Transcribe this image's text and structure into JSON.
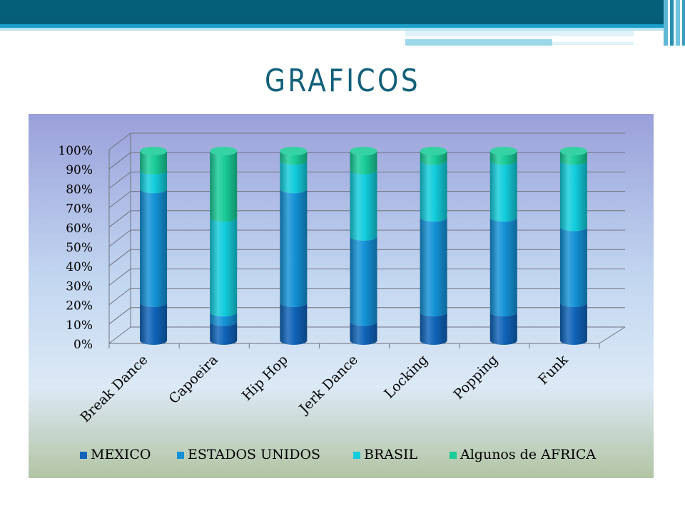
{
  "slide": {
    "title": "GRAFICOS"
  },
  "colors": {
    "MEXICO": "#0f63b8",
    "ESTADOS UNIDOS": "#1491d6",
    "BRASIL": "#13ccdc",
    "Algunos de AFRICA": "#19cc98"
  },
  "chart_data": {
    "type": "bar",
    "stacked": "percent",
    "three_d": true,
    "title": "",
    "xlabel": "",
    "ylabel": "",
    "categories": [
      "Break Dance",
      "Capoeira",
      "Hip Hop",
      "Jerk Dance",
      "Locking",
      "Popping",
      "Funk"
    ],
    "series": [
      {
        "name": "MEXICO",
        "values": [
          20,
          10,
          20,
          10,
          15,
          15,
          20
        ]
      },
      {
        "name": "ESTADOS UNIDOS",
        "values": [
          60,
          5,
          60,
          45,
          50,
          50,
          40
        ]
      },
      {
        "name": "BRASIL",
        "values": [
          10,
          50,
          15,
          35,
          30,
          30,
          35
        ]
      },
      {
        "name": "Algunos de AFRICA",
        "values": [
          10,
          35,
          5,
          10,
          5,
          5,
          5
        ]
      }
    ],
    "ylim": [
      0,
      100
    ],
    "yticks": [
      "0%",
      "10%",
      "20%",
      "30%",
      "40%",
      "50%",
      "60%",
      "70%",
      "80%",
      "90%",
      "100%"
    ],
    "grid": true,
    "legend": "bottom"
  }
}
